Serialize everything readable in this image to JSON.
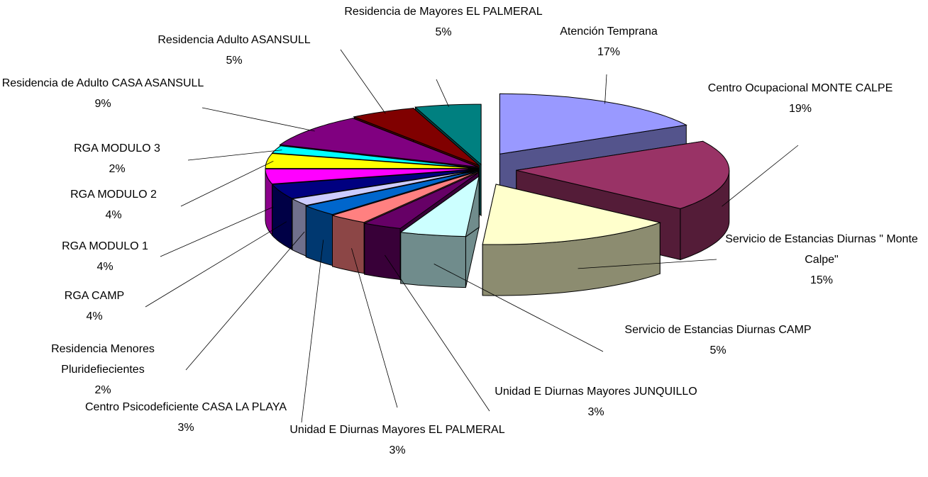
{
  "chart_data": {
    "type": "pie3d",
    "categories": [
      "Atención Temprana",
      "Centro Ocupacional MONTE CALPE",
      "Servicio de Estancias Diurnas \" Monte Calpe\"",
      "Servicio de Estancias Diurnas CAMP",
      "Unidad E Diurnas Mayores JUNQUILLO",
      "Unidad E Diurnas Mayores EL PALMERAL",
      "Centro Psicodeficiente CASA LA PLAYA",
      "Residencia Menores Pluridefiecientes",
      "RGA CAMP",
      "RGA MODULO 1",
      "RGA MODULO 2",
      "RGA MODULO 3",
      "Residencia de Adulto CASA ASANSULL",
      "Residencia Adulto ASANSULL",
      "Residencia de Mayores EL PALMERAL"
    ],
    "values": [
      17,
      19,
      15,
      5,
      3,
      3,
      3,
      2,
      4,
      4,
      4,
      2,
      9,
      5,
      5
    ],
    "value_labels": [
      "17%",
      "19%",
      "15%",
      "5%",
      "3%",
      "3%",
      "3%",
      "2%",
      "4%",
      "4%",
      "4%",
      "2%",
      "9%",
      "5%",
      "5%"
    ],
    "colors": [
      "#9999ff",
      "#993366",
      "#ffffcc",
      "#ccffff",
      "#660066",
      "#ff8080",
      "#0066cc",
      "#ccccff",
      "#000080",
      "#ff00ff",
      "#ffff00",
      "#00ffff",
      "#800080",
      "#800000",
      "#008080"
    ]
  }
}
